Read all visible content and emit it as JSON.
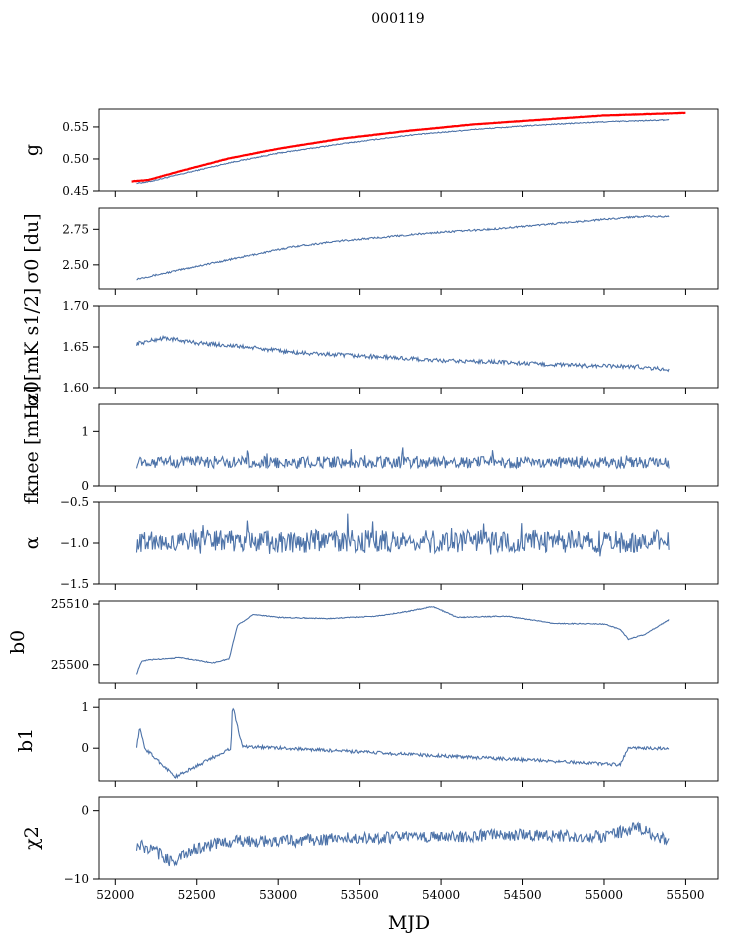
{
  "figure": {
    "suptitle": "000119",
    "xlabel": "MJD",
    "colors": {
      "series": "#4C72A8",
      "fit": "#FF0000",
      "axes": "#000000",
      "background": "#FFFFFF"
    }
  },
  "chart_data": [
    {
      "type": "line",
      "id": "g",
      "ylabel": "g",
      "xlim": [
        51900,
        55700
      ],
      "ylim": [
        0.45,
        0.578
      ],
      "yticks": [
        0.45,
        0.5,
        0.55
      ],
      "ytick_labels": [
        "0.45",
        "0.50",
        "0.55"
      ],
      "series": [
        {
          "x": [
            52130,
            52200,
            52400,
            52700,
            53000,
            53400,
            53800,
            54200,
            54600,
            55000,
            55400
          ],
          "values": [
            0.462,
            0.464,
            0.476,
            0.494,
            0.509,
            0.524,
            0.537,
            0.546,
            0.553,
            0.558,
            0.561
          ]
        },
        {
          "x": [
            52100,
            52200,
            52400,
            52700,
            53000,
            53400,
            53800,
            54200,
            54600,
            55000,
            55500
          ],
          "values": [
            0.465,
            0.467,
            0.481,
            0.501,
            0.516,
            0.532,
            0.544,
            0.554,
            0.561,
            0.568,
            0.572
          ],
          "color": "#FF0000"
        }
      ]
    },
    {
      "type": "line",
      "id": "sigma0_du",
      "ylabel": "σ0 [du]",
      "xlim": [
        51900,
        55700
      ],
      "ylim": [
        2.33,
        2.9
      ],
      "yticks": [
        2.5,
        2.75
      ],
      "ytick_labels": [
        "2.50",
        "2.75"
      ],
      "series": [
        {
          "x": [
            52130,
            52300,
            52500,
            52800,
            53100,
            53400,
            53700,
            54000,
            54300,
            54600,
            54900,
            55200,
            55400
          ],
          "values": [
            2.4,
            2.44,
            2.49,
            2.56,
            2.63,
            2.67,
            2.7,
            2.73,
            2.75,
            2.78,
            2.81,
            2.84,
            2.84
          ]
        }
      ]
    },
    {
      "type": "line",
      "id": "sigma0_mk",
      "ylabel": "σ0[mK s1/2]",
      "xlim": [
        51900,
        55700
      ],
      "ylim": [
        1.6,
        1.7
      ],
      "yticks": [
        1.6,
        1.65,
        1.7
      ],
      "ytick_labels": [
        "1.60",
        "1.65",
        "1.70"
      ],
      "series": [
        {
          "x": [
            52130,
            52300,
            52500,
            52800,
            53100,
            53400,
            53700,
            54000,
            54300,
            54600,
            54900,
            55200,
            55400
          ],
          "values": [
            1.654,
            1.661,
            1.655,
            1.65,
            1.643,
            1.64,
            1.637,
            1.633,
            1.632,
            1.629,
            1.627,
            1.626,
            1.622
          ]
        }
      ]
    },
    {
      "type": "line",
      "id": "fknee",
      "ylabel": "fknee [mHz]",
      "xlim": [
        51900,
        55700
      ],
      "ylim": [
        0,
        1.5
      ],
      "yticks": [
        0,
        1
      ],
      "ytick_labels": [
        "0",
        "1"
      ],
      "series": [
        {
          "x": [
            52130,
            55400
          ],
          "values": [
            0.43,
            0.43
          ]
        }
      ]
    },
    {
      "type": "line",
      "id": "alpha",
      "ylabel": "α",
      "xlim": [
        51900,
        55700
      ],
      "ylim": [
        -1.5,
        -0.5
      ],
      "yticks": [
        -1.5,
        -1.0,
        -0.5
      ],
      "ytick_labels": [
        "−1.5",
        "−1.0",
        "−0.5"
      ],
      "series": [
        {
          "x": [
            52130,
            55400
          ],
          "values": [
            -0.98,
            -0.98
          ]
        }
      ]
    },
    {
      "type": "line",
      "id": "b0",
      "ylabel": "b0",
      "xlim": [
        51900,
        55700
      ],
      "ylim": [
        25497,
        25510.5
      ],
      "yticks": [
        25500,
        25510
      ],
      "ytick_labels": [
        "25500",
        "25510"
      ],
      "series": [
        {
          "x": [
            52130,
            52160,
            52200,
            52400,
            52600,
            52700,
            52750,
            52850,
            53000,
            53300,
            53600,
            53800,
            53950,
            54100,
            54400,
            54700,
            55000,
            55100,
            55150,
            55250,
            55400
          ],
          "values": [
            25498.5,
            25500.5,
            25500.8,
            25501.2,
            25500.3,
            25501.0,
            25506.5,
            25508.3,
            25507.8,
            25507.6,
            25508.0,
            25508.8,
            25509.6,
            25507.8,
            25508.0,
            25506.8,
            25506.7,
            25505.8,
            25504.2,
            25505.0,
            25507.4
          ]
        }
      ]
    },
    {
      "type": "line",
      "id": "b1",
      "ylabel": "b1",
      "xlim": [
        51900,
        55700
      ],
      "ylim": [
        -0.8,
        1.2
      ],
      "yticks": [
        0,
        1
      ],
      "ytick_labels": [
        "0",
        "1"
      ],
      "series": [
        {
          "x": [
            52130,
            52150,
            52180,
            52370,
            52710,
            52720,
            52780,
            55100,
            55150,
            55400
          ],
          "values": [
            0.05,
            0.5,
            0.0,
            -0.7,
            0.0,
            1.05,
            0.05,
            -0.4,
            0.0,
            0.0
          ]
        }
      ]
    },
    {
      "type": "line",
      "id": "chi2",
      "ylabel": "χ2",
      "xlim": [
        51900,
        55700
      ],
      "ylim": [
        -10,
        2
      ],
      "yticks": [
        -10,
        0
      ],
      "ytick_labels": [
        "−10",
        "0"
      ],
      "xticks": [
        52000,
        52500,
        53000,
        53500,
        54000,
        54500,
        55000,
        55500
      ],
      "xtick_labels": [
        "52000",
        "52500",
        "53000",
        "53500",
        "54000",
        "54500",
        "55000",
        "55500"
      ],
      "series": [
        {
          "x": [
            52130,
            52250,
            52350,
            52500,
            52700,
            53000,
            53500,
            54000,
            54500,
            55000,
            55200,
            55400
          ],
          "values": [
            -5.0,
            -6.0,
            -7.5,
            -5.5,
            -4.5,
            -4.5,
            -4.0,
            -3.8,
            -3.5,
            -3.8,
            -2.5,
            -4.5
          ]
        }
      ]
    }
  ]
}
